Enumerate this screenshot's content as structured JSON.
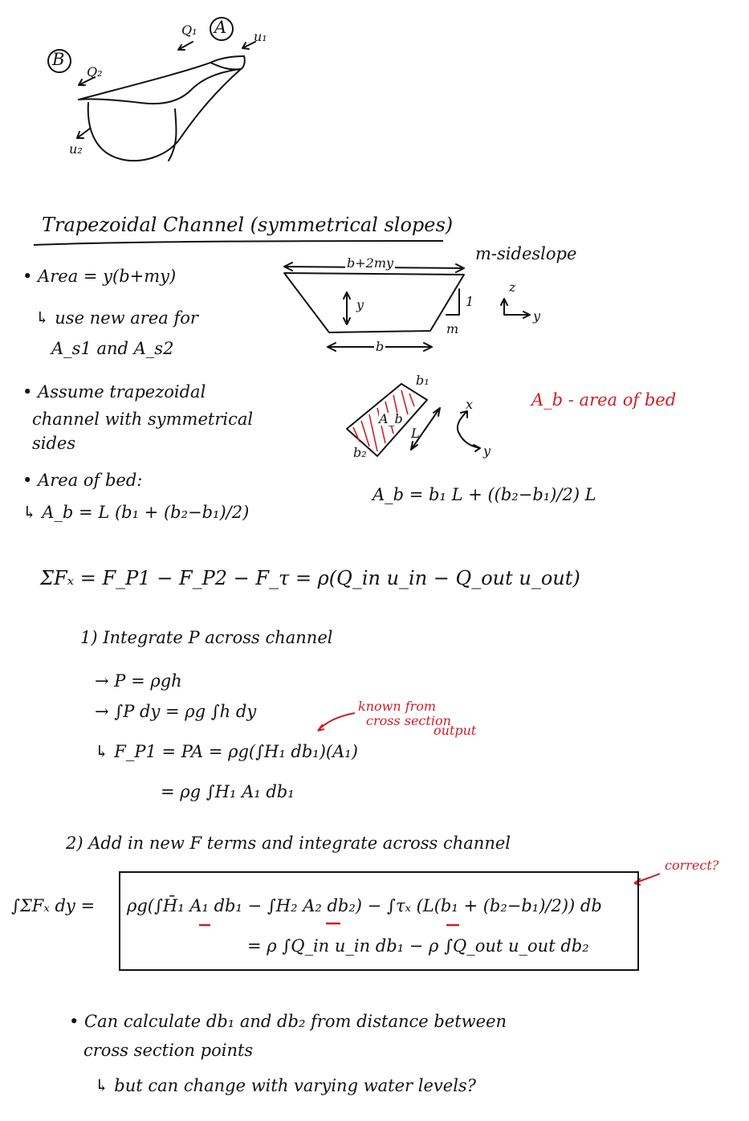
{
  "sketch": {
    "label_a": "A",
    "label_b": "B",
    "q1": "Q₁",
    "q2": "Q₂",
    "u1": "u₁",
    "u2": "u₂"
  },
  "heading": "Trapezoidal Channel (symmetrical slopes)",
  "area": {
    "line1": "• Area = y(b+my)",
    "line2": "↳ use new area for",
    "line3": "A_s1 and A_s2"
  },
  "trap": {
    "top_label": "b+2my",
    "depth": "y",
    "bottom": "b",
    "one": "1",
    "m": "m",
    "sideslope": "m-sideslope",
    "axis_z": "z",
    "axis_y": "y"
  },
  "assume": {
    "line1": "• Assume trapezoidal",
    "line2": "channel with symmetrical",
    "line3": "sides"
  },
  "bed": {
    "title": "• Area of bed:",
    "formula": "↳ A_b = L (b₁ + (b₂−b₁)/2)",
    "label_ab": "A_b",
    "b1": "b₁",
    "b2": "b₂",
    "L": "L",
    "axis_x": "x",
    "axis_y": "y",
    "right_formula": "A_b = b₁ L + ((b₂−b₁)/2) L",
    "note_red": "A_b - area of bed"
  },
  "momentum": {
    "sum": "ΣFₓ = F_P1 − F_P2 − F_τ = ρ(Q_in u_in − Q_out u_out)",
    "step1": "1) Integrate P across channel",
    "p1": "→ P = ρgh",
    "p2": "→ ∫P dy = ρg ∫h dy",
    "known1": "known from",
    "known2": "cross section",
    "known3": "output",
    "fp1": "↳ F_P1 = PA = ρg(∫H₁ db₁)(A₁)",
    "fp1b": "= ρg ∫H₁ A₁ db₁",
    "step2": "2) Add in new F terms and integrate across channel",
    "eq_left": "∫ΣFₓ dy =",
    "eq_box1": "ρg(∫H̄₁ A₁ db₁ − ∫H₂ A₂ db₂) − ∫τₓ (L(b₁ + (b₂−b₁)/2)) db",
    "eq_box2": "= ρ ∫Q_in u_in db₁  − ρ ∫Q_out u_out db₂",
    "correct": "correct?"
  },
  "closing": {
    "line1": "• Can calculate db₁ and db₂ from distance between",
    "line2": "cross section points",
    "line3": "↳ but can change with varying water levels?"
  }
}
